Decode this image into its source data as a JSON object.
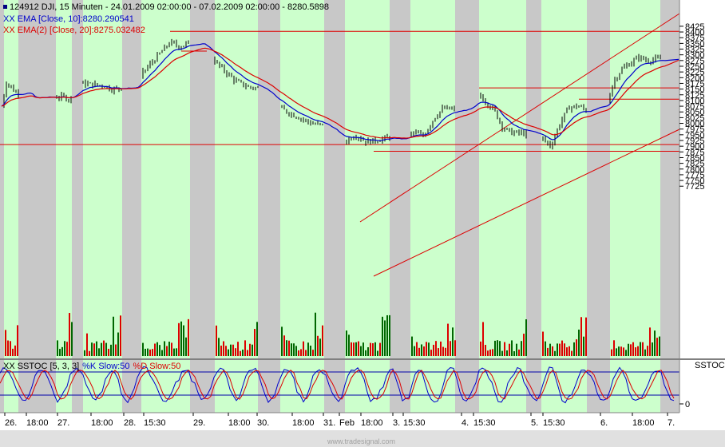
{
  "header": {
    "title": "124912  DJI, 15 Minuten - 24.01.2009 02:00:00 - 07.02.2009 02:00:00 - 8280.5898"
  },
  "legend": {
    "ema_prefix": "XX",
    "ema_label": "EMA [Close, 10]:8280.290541",
    "ema2_prefix": "XX",
    "ema2_label": "EMA(2) [Close, 20]:8275.032482",
    "ema_color": "#0000cc",
    "ema2_color": "#dd0000"
  },
  "stoch_legend": {
    "prefix": "XX",
    "name": "SSTOC [5, 3, 3]",
    "k_label": "%K Slow:50",
    "d_label": "%D Slow:50",
    "k_color": "#0000cc",
    "d_color": "#dd0000"
  },
  "stoch_panel_label": "SSTOC",
  "watermark": "www.tradesignal.com",
  "chart_data": {
    "type": "line",
    "series": [
      {
        "name": "EMA [Close, 10]",
        "last": 8280.290541
      },
      {
        "name": "EMA(2) [Close, 20]",
        "last": 8275.032482
      }
    ],
    "last_close": 8280.5898,
    "price_axis": {
      "ticks": [
        "8425",
        "8400",
        "8375",
        "8350",
        "8325",
        "8300",
        "8275",
        "8250",
        "8225",
        "8200",
        "8175",
        "8150",
        "8125",
        "8100",
        "8075",
        "8050",
        "8025",
        "8000",
        "7975",
        "7950",
        "7925",
        "7900",
        "7875",
        "7850",
        "7825",
        "7800",
        "7775",
        "7750",
        "7725"
      ],
      "min": 7712,
      "max": 8437
    },
    "x_labels": [
      "26.",
      "18:00",
      "27.",
      "18:00",
      "28.",
      "15:30",
      "29.",
      "18:00",
      "30.",
      "18:00",
      "31.",
      "Feb",
      "18:00",
      "3.",
      "15:30",
      "4.",
      "15:30",
      "5.",
      "15:30",
      "6.",
      "18:00",
      "7."
    ],
    "stoch_axis": {
      "ticks": [
        "0"
      ],
      "lower": 20,
      "upper": 80
    },
    "colors": {
      "session_band": "#ccffcc",
      "off_band": "#c8c8c8",
      "bars": "#000000",
      "volume_up": "#006600",
      "volume_down": "#dd0000",
      "trendline": "#dd0000"
    }
  }
}
